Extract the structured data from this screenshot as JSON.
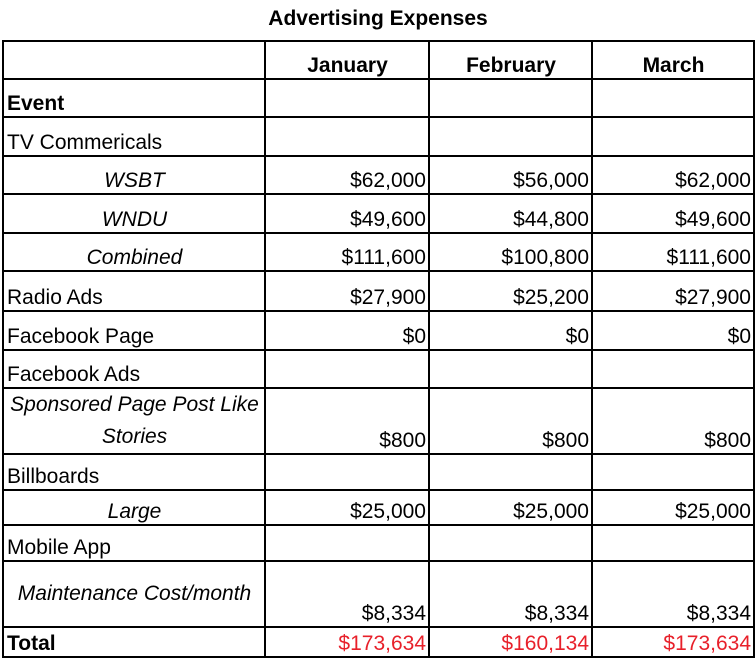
{
  "title": "Advertising Expenses",
  "colors": {
    "total_value": "#e8202a",
    "border": "#000000"
  },
  "columns": [
    "",
    "January",
    "February",
    "March"
  ],
  "rows": [
    {
      "label": "Event",
      "style": "bold",
      "values": [
        "",
        "",
        ""
      ]
    },
    {
      "label": "TV Commericals",
      "style": "normal",
      "values": [
        "",
        "",
        ""
      ]
    },
    {
      "label": "WSBT",
      "style": "sub",
      "values": [
        "$62,000",
        "$56,000",
        "$62,000"
      ]
    },
    {
      "label": "WNDU",
      "style": "sub",
      "values": [
        "$49,600",
        "$44,800",
        "$49,600"
      ]
    },
    {
      "label": "Combined",
      "style": "sub",
      "values": [
        "$111,600",
        "$100,800",
        "$111,600"
      ]
    },
    {
      "label": "Radio Ads",
      "style": "normal",
      "values": [
        "$27,900",
        "$25,200",
        "$27,900"
      ]
    },
    {
      "label": "Facebook Page",
      "style": "normal",
      "values": [
        "$0",
        "$0",
        "$0"
      ]
    },
    {
      "label": "Facebook Ads",
      "style": "normal",
      "values": [
        "",
        "",
        ""
      ]
    },
    {
      "label": "Sponsored Page Post Like Stories",
      "style": "sub-two-line",
      "values": [
        "$800",
        "$800",
        "$800"
      ]
    },
    {
      "label": "Billboards",
      "style": "normal",
      "values": [
        "",
        "",
        ""
      ]
    },
    {
      "label": "Large",
      "style": "sub",
      "values": [
        "$25,000",
        "$25,000",
        "$25,000"
      ]
    },
    {
      "label": "Mobile App",
      "style": "normal",
      "values": [
        "",
        "",
        ""
      ]
    },
    {
      "label": "Maintenance Cost/month",
      "style": "sub-two-line",
      "values": [
        "$8,334",
        "$8,334",
        "$8,334"
      ]
    },
    {
      "label": "Total",
      "style": "total",
      "values": [
        "$173,634",
        "$160,134",
        "$173,634"
      ]
    }
  ]
}
